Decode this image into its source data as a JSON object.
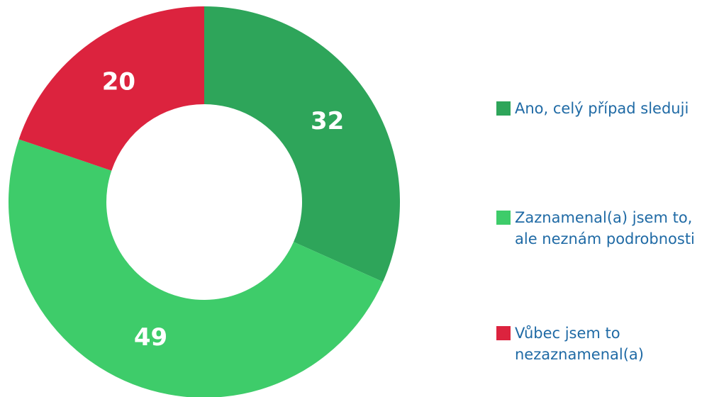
{
  "chart_data": {
    "type": "donut",
    "categories": [
      "Ano, celý případ sleduji",
      "Zaznamenal(a) jsem to, ale neznám podrobnosti",
      "Vůbec jsem to nezaznamenal(a)"
    ],
    "values": [
      32,
      49,
      20
    ],
    "colors": [
      "#2ea55a",
      "#3ecc6a",
      "#dc233e"
    ],
    "legend": "right"
  }
}
